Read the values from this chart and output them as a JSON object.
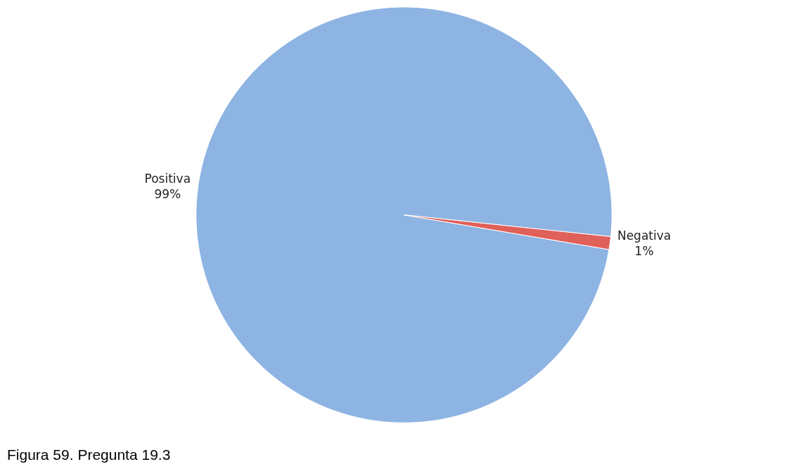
{
  "chart_data": {
    "type": "pie",
    "categories": [
      "Positiva",
      "Negativa"
    ],
    "values": [
      99,
      1
    ],
    "value_labels": [
      "99%",
      "1%"
    ],
    "colors": [
      "#8db4e2",
      "#e0605a"
    ],
    "annotations": [
      "Figura 59. Pregunta 19.3"
    ],
    "legend": false
  }
}
